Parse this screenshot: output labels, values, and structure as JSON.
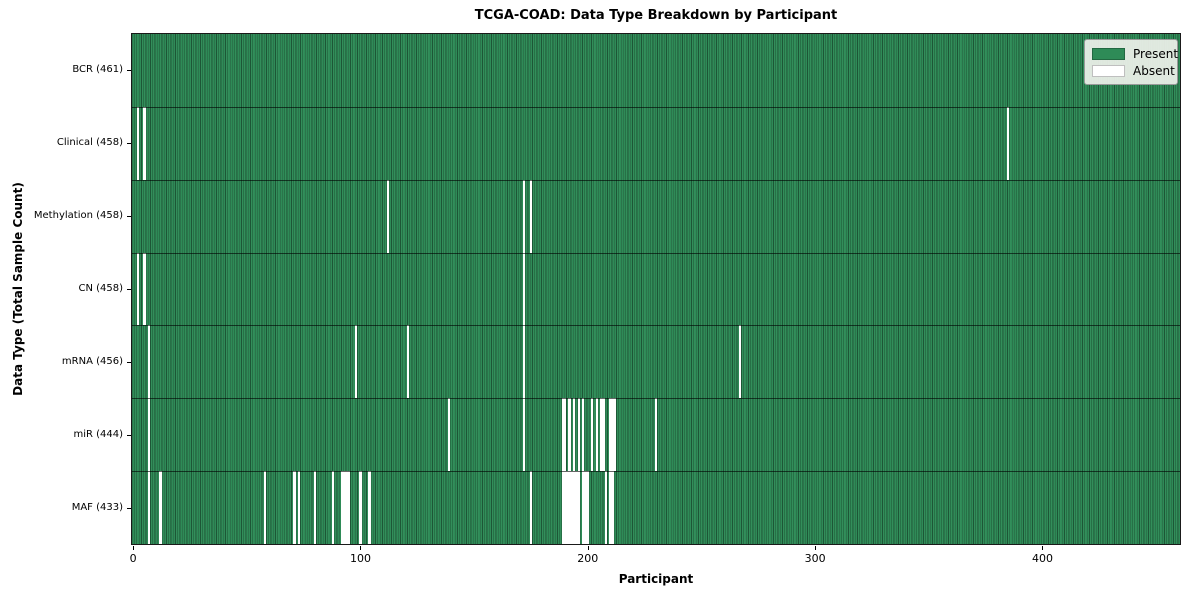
{
  "figure": {
    "title": "TCGA-COAD: Data Type Breakdown by Participant",
    "x_axis_label": "Participant",
    "y_axis_label": "Data Type (Total Sample Count)"
  },
  "legend": {
    "position": "upper right",
    "items": [
      {
        "label": "Present",
        "color": "#2e8b57"
      },
      {
        "label": "Absent",
        "color": "#ffffff"
      }
    ]
  },
  "chart_data": {
    "type": "heatmap",
    "title": "TCGA-COAD: Data Type Breakdown by Participant",
    "xlabel": "Participant",
    "ylabel": "Data Type (Total Sample Count)",
    "n_participants": 461,
    "xlim": [
      0,
      461
    ],
    "x_ticks": [
      0,
      100,
      200,
      300,
      400
    ],
    "present_color": "#2e8b57",
    "absent_color": "#ffffff",
    "grid": false,
    "legend_entries": [
      "Present",
      "Absent"
    ],
    "legend_position": "upper right",
    "rows": [
      {
        "label": "BCR (461)",
        "name": "BCR",
        "present_count": 461,
        "absent_count": 0,
        "absent_participants": []
      },
      {
        "label": "Clinical (458)",
        "name": "Clinical",
        "present_count": 458,
        "absent_count": 3,
        "absent_participants": [
          2,
          5,
          385
        ]
      },
      {
        "label": "Methylation (458)",
        "name": "Methylation",
        "present_count": 458,
        "absent_count": 3,
        "absent_participants": [
          112,
          172,
          175
        ]
      },
      {
        "label": "CN (458)",
        "name": "CN",
        "present_count": 458,
        "absent_count": 3,
        "absent_participants": [
          2,
          5,
          172
        ]
      },
      {
        "label": "mRNA (456)",
        "name": "mRNA",
        "present_count": 456,
        "absent_count": 5,
        "absent_participants": [
          7,
          98,
          121,
          172,
          267
        ]
      },
      {
        "label": "miR (444)",
        "name": "miR",
        "present_count": 444,
        "absent_count": 17,
        "absent_participants": [
          7,
          139,
          172,
          189,
          190,
          192,
          194,
          196,
          198,
          202,
          204,
          206,
          207,
          210,
          211,
          212,
          230
        ]
      },
      {
        "label": "MAF (433)",
        "name": "MAF",
        "present_count": 433,
        "absent_count": 28,
        "absent_participants": [
          7,
          12,
          58,
          71,
          73,
          80,
          88,
          92,
          93,
          94,
          95,
          100,
          104,
          175,
          189,
          190,
          191,
          192,
          193,
          194,
          195,
          196,
          198,
          199,
          200,
          208,
          210,
          211
        ]
      }
    ]
  }
}
